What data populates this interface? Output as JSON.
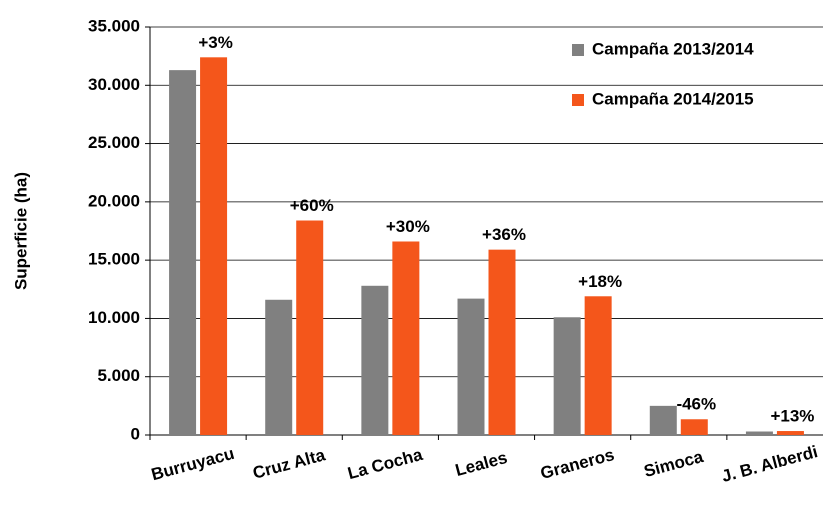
{
  "chart_data": {
    "type": "bar",
    "y_axis_label": "Superficie (ha)",
    "categories": [
      "Burruyacu",
      "Cruz Alta",
      "La Cocha",
      "Leales",
      "Graneros",
      "Simoca",
      "J. B. Alberdi"
    ],
    "series": [
      {
        "name": "Campaña 2013/2014",
        "color": "#808080",
        "values": [
          31300,
          11600,
          12800,
          11700,
          10100,
          2500,
          300
        ]
      },
      {
        "name": "Campaña 2014/2015",
        "color": "#f4561b",
        "values": [
          32400,
          18400,
          16600,
          15900,
          11900,
          1350,
          340
        ]
      }
    ],
    "annotations": [
      "+3%",
      "+60%",
      "+30%",
      "+36%",
      "+18%",
      "-46%",
      "+13%"
    ],
    "ylim": [
      0,
      35000
    ],
    "yticks": [
      0,
      {
        "value": 5000,
        "label": "5.000"
      },
      {
        "value": 10000,
        "label": "10.000"
      },
      {
        "value": 15000,
        "label": "15.000"
      },
      {
        "value": 20000,
        "label": "20.000"
      },
      {
        "value": 25000,
        "label": "25.000"
      },
      {
        "value": 30000,
        "label": "30.000"
      },
      {
        "value": 35000,
        "label": "35.000"
      }
    ],
    "grid": true,
    "legend": "top-right"
  }
}
